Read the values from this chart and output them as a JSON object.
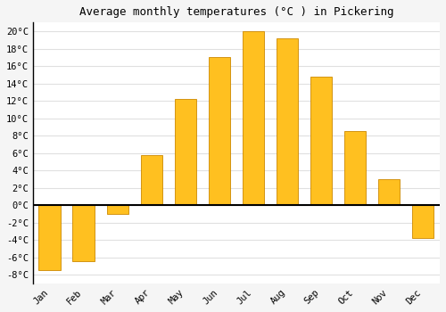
{
  "title": "Average monthly temperatures (°C ) in Pickering",
  "months": [
    "Jan",
    "Feb",
    "Mar",
    "Apr",
    "May",
    "Jun",
    "Jul",
    "Aug",
    "Sep",
    "Oct",
    "Nov",
    "Dec"
  ],
  "values": [
    -7.5,
    -6.5,
    -1.0,
    5.8,
    12.2,
    17.0,
    20.0,
    19.2,
    14.8,
    8.5,
    3.0,
    -3.8
  ],
  "bar_color": "#FFC020",
  "bar_edge_color": "#CC8800",
  "ylim": [
    -9,
    21
  ],
  "yticks": [
    -8,
    -6,
    -4,
    -2,
    0,
    2,
    4,
    6,
    8,
    10,
    12,
    14,
    16,
    18,
    20
  ],
  "ytick_labels": [
    "-8°C",
    "-6°C",
    "-4°C",
    "-2°C",
    "0°C",
    "2°C",
    "4°C",
    "6°C",
    "8°C",
    "10°C",
    "12°C",
    "14°C",
    "16°C",
    "18°C",
    "20°C"
  ],
  "fig_background_color": "#f5f5f5",
  "plot_background_color": "#ffffff",
  "grid_color": "#e0e0e0",
  "title_fontsize": 9,
  "tick_fontsize": 7.5,
  "bar_width": 0.65
}
